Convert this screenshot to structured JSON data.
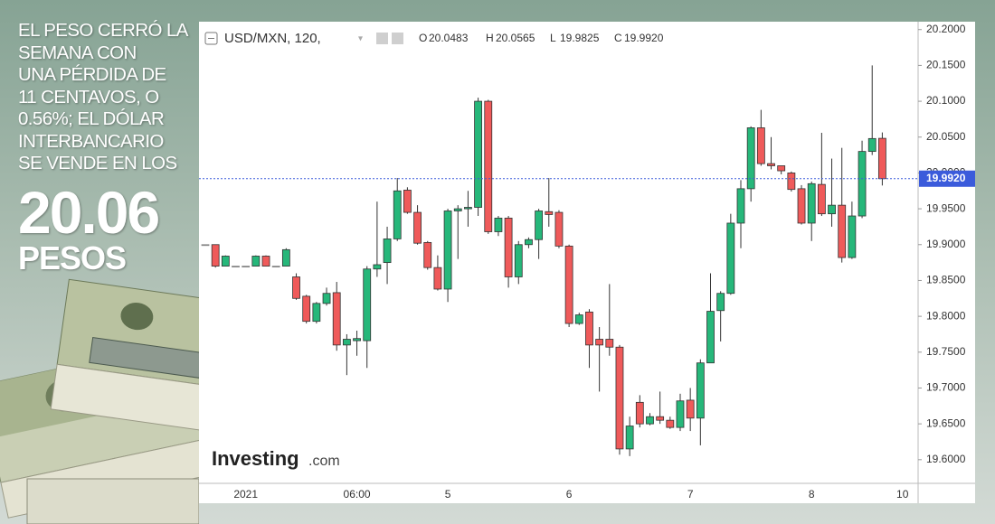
{
  "headline_lines": [
    "EL PESO CERRÓ LA",
    "SEMANA CON",
    "UNA  PÉRDIDA DE",
    "11 CENTAVOS, O",
    "0.56%; EL DÓLAR",
    "INTERBANCARIO",
    "SE VENDE EN LOS"
  ],
  "big_number": "20.06",
  "big_unit": "PESOS",
  "logo": {
    "brand": "Investing",
    "suffix": ".com"
  },
  "chart_data": {
    "type": "candlestick",
    "symbol": "USD/MXN, 120,",
    "ohlc_legend": [
      {
        "key": "O",
        "value": "20.0483"
      },
      {
        "key": "H",
        "value": "20.0565"
      },
      {
        "key": "L",
        "value": "19.9825"
      },
      {
        "key": "C",
        "value": "19.9920"
      }
    ],
    "categories": [
      null,
      null,
      null,
      null,
      "2021",
      null,
      null,
      null,
      null,
      null,
      null,
      null,
      null,
      null,
      null,
      "06:00",
      null,
      null,
      null,
      null,
      null,
      null,
      null,
      null,
      "5",
      null,
      null,
      null,
      null,
      null,
      null,
      null,
      null,
      null,
      null,
      null,
      "6",
      null,
      null,
      null,
      null,
      null,
      null,
      null,
      null,
      null,
      null,
      null,
      "7",
      null,
      null,
      null,
      null,
      null,
      null,
      null,
      null,
      null,
      null,
      null,
      "8",
      null,
      null,
      null,
      null,
      null,
      null,
      null,
      null,
      "10"
    ],
    "open": [
      19.9,
      19.9,
      19.87,
      19.87,
      19.87,
      19.87,
      19.884,
      19.87,
      19.87,
      19.855,
      19.828,
      19.793,
      19.818,
      19.833,
      19.76,
      19.766,
      19.766,
      19.866,
      19.875,
      19.908,
      19.976,
      19.945,
      19.903,
      19.868,
      19.838,
      19.947,
      19.95,
      19.952,
      20.1,
      19.918,
      19.937,
      19.855,
      19.9,
      19.907,
      19.946,
      19.945,
      19.898,
      19.79,
      19.806,
      19.768,
      19.768,
      19.757,
      19.615,
      19.68,
      19.65,
      19.66,
      19.655,
      19.645,
      19.683,
      19.658,
      19.735,
      19.808,
      19.832,
      19.93,
      19.978,
      20.063,
      20.013,
      20.01,
      20.0,
      19.978,
      19.93,
      19.984,
      19.943,
      19.955,
      19.882,
      19.94,
      20.03,
      20.0483,
      null,
      null
    ],
    "high": [
      19.9,
      19.9,
      19.885,
      19.87,
      19.87,
      19.885,
      19.885,
      19.87,
      19.895,
      19.86,
      19.83,
      19.82,
      19.84,
      19.848,
      19.775,
      19.78,
      19.87,
      19.96,
      19.925,
      19.993,
      19.98,
      19.955,
      19.905,
      19.885,
      19.95,
      19.955,
      19.975,
      20.105,
      20.102,
      19.94,
      19.94,
      19.905,
      19.91,
      19.95,
      19.993,
      19.948,
      19.9,
      19.805,
      19.81,
      19.785,
      19.845,
      19.76,
      19.66,
      19.69,
      19.665,
      19.695,
      19.66,
      19.692,
      19.7,
      19.74,
      19.86,
      19.835,
      19.943,
      19.99,
      20.065,
      20.088,
      20.05,
      20.01,
      20.002,
      19.983,
      19.988,
      20.056,
      20.02,
      20.035,
      19.96,
      20.045,
      20.15,
      20.0565,
      null,
      null
    ],
    "low": [
      19.9,
      19.868,
      19.87,
      19.87,
      19.87,
      19.87,
      19.87,
      19.87,
      19.87,
      19.823,
      19.79,
      19.79,
      19.815,
      19.752,
      19.718,
      19.745,
      19.728,
      19.855,
      19.845,
      19.905,
      19.943,
      19.9,
      19.865,
      19.836,
      19.82,
      19.88,
      19.925,
      19.94,
      19.915,
      19.912,
      19.84,
      19.845,
      19.895,
      19.88,
      19.925,
      19.895,
      19.785,
      19.788,
      19.728,
      19.695,
      19.745,
      19.607,
      19.605,
      19.645,
      19.648,
      19.65,
      19.643,
      19.64,
      19.64,
      19.62,
      19.735,
      19.765,
      19.83,
      19.895,
      19.96,
      20.01,
      20.005,
      19.998,
      19.974,
      19.928,
      19.905,
      19.94,
      19.925,
      19.875,
      19.88,
      19.937,
      20.025,
      19.9825,
      null,
      null
    ],
    "close": [
      19.9,
      19.87,
      19.884,
      19.87,
      19.87,
      19.884,
      19.87,
      19.87,
      19.893,
      19.825,
      19.793,
      19.818,
      19.832,
      19.76,
      19.768,
      19.769,
      19.866,
      19.872,
      19.908,
      19.975,
      19.945,
      19.902,
      19.868,
      19.838,
      19.947,
      19.95,
      19.952,
      20.1,
      19.918,
      19.937,
      19.855,
      19.9,
      19.907,
      19.947,
      19.942,
      19.898,
      19.79,
      19.802,
      19.76,
      19.76,
      19.757,
      19.615,
      19.647,
      19.65,
      19.66,
      19.655,
      19.645,
      19.682,
      19.658,
      19.735,
      19.807,
      19.832,
      19.93,
      19.978,
      20.063,
      20.013,
      20.01,
      20.003,
      19.977,
      19.93,
      19.985,
      19.943,
      19.955,
      19.882,
      19.94,
      20.03,
      20.048,
      19.992,
      null,
      null
    ],
    "up_color": "#26b77a",
    "down_color": "#ef5a5a",
    "flat_color": "#888888",
    "last_price": {
      "value": 19.992,
      "label": "19.9920"
    },
    "last_price_color": "#3b5bdb",
    "ylim": [
      19.567,
      20.211
    ],
    "yticks": [
      {
        "value": 19.6,
        "label": "19.6000"
      },
      {
        "value": 19.65,
        "label": "19.6500"
      },
      {
        "value": 19.7,
        "label": "19.7000"
      },
      {
        "value": 19.75,
        "label": "19.7500"
      },
      {
        "value": 19.8,
        "label": "19.8000"
      },
      {
        "value": 19.85,
        "label": "19.8500"
      },
      {
        "value": 19.9,
        "label": "19.9000"
      },
      {
        "value": 19.95,
        "label": "19.9500"
      },
      {
        "value": 20.0,
        "label": "20.0000"
      },
      {
        "value": 20.05,
        "label": "20.0500"
      },
      {
        "value": 20.1,
        "label": "20.1000"
      },
      {
        "value": 20.15,
        "label": "20.1500"
      },
      {
        "value": 20.2,
        "label": "20.2000"
      }
    ],
    "grid": false
  }
}
